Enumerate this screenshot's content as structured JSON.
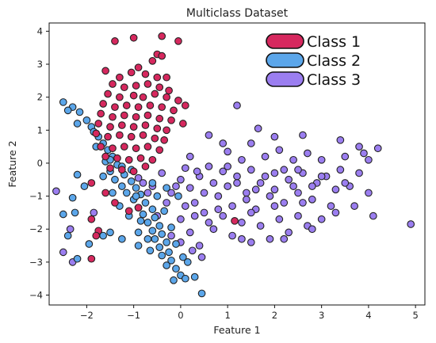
{
  "chart_data": {
    "type": "scatter",
    "title": "Multiclass Dataset",
    "xlabel": "Feature 1",
    "ylabel": "Feature 2",
    "xlim": [
      -2.8,
      5.2
    ],
    "ylim": [
      -4.3,
      4.25
    ],
    "xticks": [
      -2,
      -1,
      0,
      1,
      2,
      3,
      4,
      5
    ],
    "yticks": [
      -4,
      -3,
      -2,
      -1,
      0,
      1,
      2,
      3,
      4
    ],
    "grid": false,
    "legend_position": "top-right",
    "series": [
      {
        "name": "Class 1",
        "color": "#d6285e",
        "points": [
          [
            -1.4,
            3.7
          ],
          [
            -1.0,
            3.8
          ],
          [
            -0.4,
            3.85
          ],
          [
            -0.05,
            3.7
          ],
          [
            -0.5,
            3.3
          ],
          [
            -0.6,
            3.1
          ],
          [
            -0.4,
            3.25
          ],
          [
            -0.9,
            2.9
          ],
          [
            -1.3,
            2.6
          ],
          [
            -1.6,
            2.8
          ],
          [
            -1.05,
            2.75
          ],
          [
            -0.75,
            2.7
          ],
          [
            -0.5,
            2.6
          ],
          [
            -0.3,
            2.6
          ],
          [
            -1.45,
            2.4
          ],
          [
            -1.2,
            2.3
          ],
          [
            -0.95,
            2.35
          ],
          [
            -0.7,
            2.4
          ],
          [
            -0.45,
            2.3
          ],
          [
            -0.25,
            2.2
          ],
          [
            -1.55,
            2.1
          ],
          [
            -1.3,
            2.0
          ],
          [
            -1.0,
            2.05
          ],
          [
            -0.8,
            2.0
          ],
          [
            -0.55,
            2.1
          ],
          [
            -0.3,
            2.0
          ],
          [
            -0.05,
            1.9
          ],
          [
            0.1,
            1.75
          ],
          [
            -1.65,
            1.8
          ],
          [
            -1.4,
            1.7
          ],
          [
            -1.15,
            1.75
          ],
          [
            -0.9,
            1.7
          ],
          [
            -0.65,
            1.75
          ],
          [
            -0.4,
            1.7
          ],
          [
            -0.15,
            1.6
          ],
          [
            -1.7,
            1.5
          ],
          [
            -1.45,
            1.4
          ],
          [
            -1.2,
            1.45
          ],
          [
            -0.95,
            1.4
          ],
          [
            -0.7,
            1.45
          ],
          [
            -0.45,
            1.35
          ],
          [
            -0.2,
            1.3
          ],
          [
            0.05,
            1.2
          ],
          [
            -1.75,
            1.2
          ],
          [
            -1.5,
            1.1
          ],
          [
            -1.25,
            1.15
          ],
          [
            -1.0,
            1.1
          ],
          [
            -0.75,
            1.15
          ],
          [
            -0.5,
            1.05
          ],
          [
            -0.3,
            1.0
          ],
          [
            -1.8,
            0.9
          ],
          [
            -1.55,
            0.8
          ],
          [
            -1.3,
            0.85
          ],
          [
            -1.05,
            0.8
          ],
          [
            -0.8,
            0.85
          ],
          [
            -0.55,
            0.75
          ],
          [
            -0.35,
            0.7
          ],
          [
            -1.7,
            0.5
          ],
          [
            -1.45,
            0.45
          ],
          [
            -1.2,
            0.5
          ],
          [
            -0.95,
            0.45
          ],
          [
            -0.7,
            0.5
          ],
          [
            -0.45,
            0.4
          ],
          [
            -1.6,
            0.2
          ],
          [
            -1.35,
            0.15
          ],
          [
            -1.1,
            0.1
          ],
          [
            -0.85,
            0.15
          ],
          [
            -0.6,
            0.1
          ],
          [
            -1.5,
            -0.15
          ],
          [
            -1.25,
            -0.2
          ],
          [
            -1.0,
            -0.25
          ],
          [
            -0.75,
            -0.1
          ],
          [
            -1.9,
            -0.6
          ],
          [
            -1.6,
            -0.9
          ],
          [
            -1.4,
            -1.2
          ],
          [
            -1.9,
            -1.7
          ],
          [
            -1.75,
            -2.05
          ],
          [
            -1.8,
            -2.2
          ],
          [
            -1.9,
            -2.9
          ],
          [
            -1.1,
            -1.45
          ],
          [
            -0.9,
            -1.35
          ],
          [
            1.15,
            -1.75
          ]
        ]
      },
      {
        "name": "Class 2",
        "color": "#5ba6ea",
        "points": [
          [
            -2.5,
            1.85
          ],
          [
            -2.3,
            1.7
          ],
          [
            -2.15,
            1.55
          ],
          [
            -2.4,
            1.6
          ],
          [
            -2.0,
            1.3
          ],
          [
            -1.9,
            1.1
          ],
          [
            -2.2,
            1.2
          ],
          [
            -1.85,
            0.95
          ],
          [
            -1.75,
            0.8
          ],
          [
            -1.65,
            0.6
          ],
          [
            -1.55,
            0.4
          ],
          [
            -1.8,
            0.5
          ],
          [
            -1.45,
            0.2
          ],
          [
            -1.6,
            0.05
          ],
          [
            -1.35,
            -0.05
          ],
          [
            -1.5,
            -0.25
          ],
          [
            -1.2,
            -0.35
          ],
          [
            -1.4,
            -0.5
          ],
          [
            -1.05,
            -0.55
          ],
          [
            -1.25,
            -0.7
          ],
          [
            -0.95,
            -0.75
          ],
          [
            -1.15,
            -0.9
          ],
          [
            -0.85,
            -0.95
          ],
          [
            -1.0,
            -1.1
          ],
          [
            -0.75,
            -1.2
          ],
          [
            -0.9,
            -1.35
          ],
          [
            -0.6,
            -1.4
          ],
          [
            -0.8,
            -1.55
          ],
          [
            -0.55,
            -1.65
          ],
          [
            -0.7,
            -1.8
          ],
          [
            -0.45,
            -1.9
          ],
          [
            -0.6,
            -2.05
          ],
          [
            -0.4,
            -2.15
          ],
          [
            -0.55,
            -2.3
          ],
          [
            -0.3,
            -2.4
          ],
          [
            -0.45,
            -2.55
          ],
          [
            -0.25,
            -2.7
          ],
          [
            -0.4,
            -2.8
          ],
          [
            -0.2,
            -2.95
          ],
          [
            -0.3,
            -3.1
          ],
          [
            -0.1,
            -3.2
          ],
          [
            0.0,
            -3.4
          ],
          [
            -0.15,
            -3.55
          ],
          [
            0.1,
            -3.5
          ],
          [
            0.45,
            -3.95
          ],
          [
            0.3,
            -3.45
          ],
          [
            -0.7,
            -2.3
          ],
          [
            -0.9,
            -2.1
          ],
          [
            -1.1,
            -1.6
          ],
          [
            -1.3,
            -1.3
          ],
          [
            -1.45,
            -0.9
          ],
          [
            -1.65,
            -0.4
          ],
          [
            -1.05,
            -0.2
          ],
          [
            -0.95,
            -1.0
          ],
          [
            -0.5,
            -1.0
          ],
          [
            -0.35,
            -1.45
          ],
          [
            -0.2,
            -1.95
          ],
          [
            -0.1,
            -2.45
          ],
          [
            0.05,
            -2.85
          ],
          [
            0.15,
            -3.0
          ],
          [
            -1.25,
            -0.1
          ],
          [
            -1.5,
            0.1
          ],
          [
            -2.2,
            -0.35
          ],
          [
            -2.05,
            -0.7
          ],
          [
            -2.3,
            -1.05
          ],
          [
            -2.25,
            -1.5
          ],
          [
            -2.5,
            -1.55
          ],
          [
            -2.4,
            -2.2
          ],
          [
            -2.2,
            -2.9
          ],
          [
            -1.95,
            -2.45
          ],
          [
            -1.65,
            -2.2
          ],
          [
            -1.5,
            -2.1
          ],
          [
            -1.25,
            -2.3
          ],
          [
            -0.9,
            -2.5
          ],
          [
            -0.65,
            -2.65
          ],
          [
            -0.85,
            -1.75
          ],
          [
            -0.6,
            -0.6
          ],
          [
            -0.3,
            -0.75
          ],
          [
            -0.05,
            -1.0
          ]
        ]
      },
      {
        "name": "Class 3",
        "color": "#9b7ef0",
        "points": [
          [
            -2.65,
            -0.85
          ],
          [
            -0.9,
            -0.45
          ],
          [
            -0.6,
            -0.7
          ],
          [
            -0.4,
            -0.3
          ],
          [
            -0.2,
            -0.9
          ],
          [
            0.0,
            -0.5
          ],
          [
            0.1,
            -0.15
          ],
          [
            0.2,
            -0.75
          ],
          [
            0.3,
            -1.2
          ],
          [
            0.4,
            -0.4
          ],
          [
            0.5,
            -0.9
          ],
          [
            0.6,
            -0.1
          ],
          [
            0.7,
            -0.6
          ],
          [
            0.8,
            -1.0
          ],
          [
            0.9,
            -0.25
          ],
          [
            1.0,
            -0.7
          ],
          [
            1.1,
            -1.3
          ],
          [
            1.2,
            -0.4
          ],
          [
            1.3,
            0.1
          ],
          [
            1.4,
            -0.9
          ],
          [
            1.5,
            -0.2
          ],
          [
            1.6,
            -1.4
          ],
          [
            1.7,
            -0.6
          ],
          [
            1.8,
            0.2
          ],
          [
            1.9,
            -1.0
          ],
          [
            2.0,
            -0.3
          ],
          [
            2.1,
            0.4
          ],
          [
            2.2,
            -1.2
          ],
          [
            2.3,
            -0.5
          ],
          [
            2.4,
            0.1
          ],
          [
            2.5,
            -0.9
          ],
          [
            2.6,
            -0.3
          ],
          [
            2.7,
            0.3
          ],
          [
            2.8,
            -1.1
          ],
          [
            2.9,
            -0.6
          ],
          [
            3.0,
            0.1
          ],
          [
            3.1,
            -0.4
          ],
          [
            3.2,
            -1.3
          ],
          [
            3.3,
            -0.8
          ],
          [
            3.4,
            -0.2
          ],
          [
            3.5,
            0.2
          ],
          [
            3.6,
            -0.7
          ],
          [
            3.7,
            -1.3
          ],
          [
            3.8,
            -0.3
          ],
          [
            3.9,
            0.3
          ],
          [
            4.0,
            -0.9
          ],
          [
            4.1,
            -1.6
          ],
          [
            4.2,
            0.45
          ],
          [
            4.9,
            -1.85
          ],
          [
            1.65,
            1.05
          ],
          [
            2.0,
            0.8
          ],
          [
            2.6,
            0.85
          ],
          [
            3.4,
            0.7
          ],
          [
            3.8,
            0.5
          ],
          [
            1.2,
            1.75
          ],
          [
            0.6,
            0.85
          ],
          [
            0.9,
            0.6
          ],
          [
            1.5,
            0.6
          ],
          [
            0.2,
            0.2
          ],
          [
            0.35,
            -0.25
          ],
          [
            0.5,
            -1.5
          ],
          [
            0.7,
            -2.0
          ],
          [
            0.9,
            -1.6
          ],
          [
            1.1,
            -2.2
          ],
          [
            1.3,
            -1.8
          ],
          [
            1.5,
            -2.4
          ],
          [
            1.7,
            -1.9
          ],
          [
            1.9,
            -2.3
          ],
          [
            2.1,
            -1.7
          ],
          [
            2.3,
            -2.1
          ],
          [
            2.5,
            -1.6
          ],
          [
            2.7,
            -1.9
          ],
          [
            3.0,
            -1.7
          ],
          [
            3.3,
            -1.5
          ],
          [
            0.0,
            -1.7
          ],
          [
            0.2,
            -2.1
          ],
          [
            0.4,
            -2.5
          ],
          [
            0.0,
            -2.4
          ],
          [
            -0.2,
            -2.2
          ],
          [
            1.0,
            -0.1
          ],
          [
            1.2,
            -0.6
          ],
          [
            1.4,
            -1.1
          ],
          [
            1.6,
            -0.8
          ],
          [
            1.8,
            -0.4
          ],
          [
            2.0,
            -0.8
          ],
          [
            2.2,
            -0.2
          ],
          [
            2.4,
            -0.7
          ],
          [
            2.6,
            -1.2
          ],
          [
            2.8,
            -0.7
          ],
          [
            3.0,
            -0.4
          ],
          [
            0.8,
            -1.4
          ],
          [
            0.6,
            -1.8
          ],
          [
            0.3,
            -1.6
          ],
          [
            0.1,
            -1.3
          ],
          [
            -0.1,
            -0.7
          ],
          [
            -0.3,
            -1.2
          ],
          [
            -0.5,
            -1.6
          ],
          [
            -0.7,
            -0.9
          ],
          [
            -0.8,
            -0.6
          ],
          [
            0.45,
            -2.85
          ],
          [
            0.25,
            -2.65
          ],
          [
            1.5,
            -1.5
          ],
          [
            2.0,
            -1.3
          ],
          [
            2.5,
            -0.2
          ],
          [
            3.5,
            -0.6
          ],
          [
            4.0,
            0.1
          ],
          [
            1.0,
            0.35
          ],
          [
            1.3,
            -2.3
          ],
          [
            2.2,
            -2.3
          ],
          [
            2.8,
            -2.0
          ],
          [
            -2.5,
            -2.7
          ],
          [
            -2.35,
            -2.0
          ],
          [
            -1.85,
            -1.5
          ],
          [
            -2.3,
            -3.0
          ]
        ]
      }
    ],
    "legend": [
      "Class 1",
      "Class 2",
      "Class 3"
    ]
  }
}
